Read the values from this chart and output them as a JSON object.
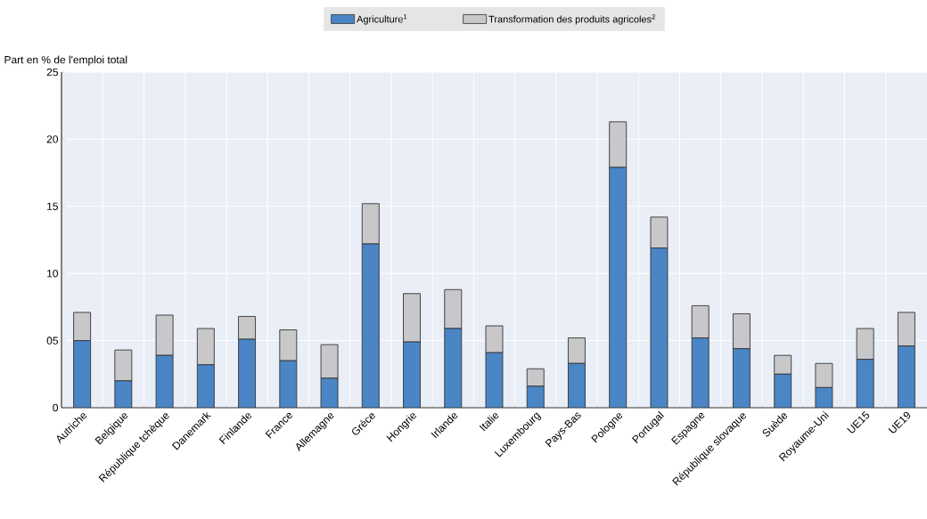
{
  "chart_data": {
    "type": "bar",
    "stacked": true,
    "ylabel": "Part en % de l'emploi total",
    "categories": [
      "Autriche",
      "Belgique",
      "République tchèque",
      "Danemark",
      "Finlande",
      "France",
      "Allemagne",
      "Grèce",
      "Hongrie",
      "Irlande",
      "Italie",
      "Luxembourg",
      "Pays-Bas",
      "Pologne",
      "Portugal",
      "Espagne",
      "République slovaque",
      "Suède",
      "Royaume-Uni",
      "UE15",
      "UE19"
    ],
    "series": [
      {
        "name": "Agriculture$^{1}$",
        "color": "#4a86c5",
        "values": [
          5.0,
          2.0,
          3.9,
          3.2,
          5.1,
          3.5,
          2.2,
          12.2,
          4.9,
          5.9,
          4.1,
          1.6,
          3.3,
          17.9,
          11.9,
          5.2,
          4.4,
          2.5,
          1.5,
          3.6,
          4.6
        ]
      },
      {
        "name": "Transformation des produits agricoles$^{2}$",
        "color": "#c8c8ca",
        "values": [
          2.1,
          2.3,
          3.0,
          2.7,
          1.7,
          2.3,
          2.5,
          3.0,
          3.6,
          2.9,
          2.0,
          1.3,
          1.9,
          3.4,
          2.3,
          2.4,
          2.6,
          1.4,
          1.8,
          2.3,
          2.5
        ]
      }
    ],
    "ylim": [
      0,
      25
    ],
    "yticks": [
      0,
      {
        "value": 5,
        "label": "05"
      },
      10,
      15,
      20,
      25
    ],
    "grid": true,
    "legend": "top"
  }
}
